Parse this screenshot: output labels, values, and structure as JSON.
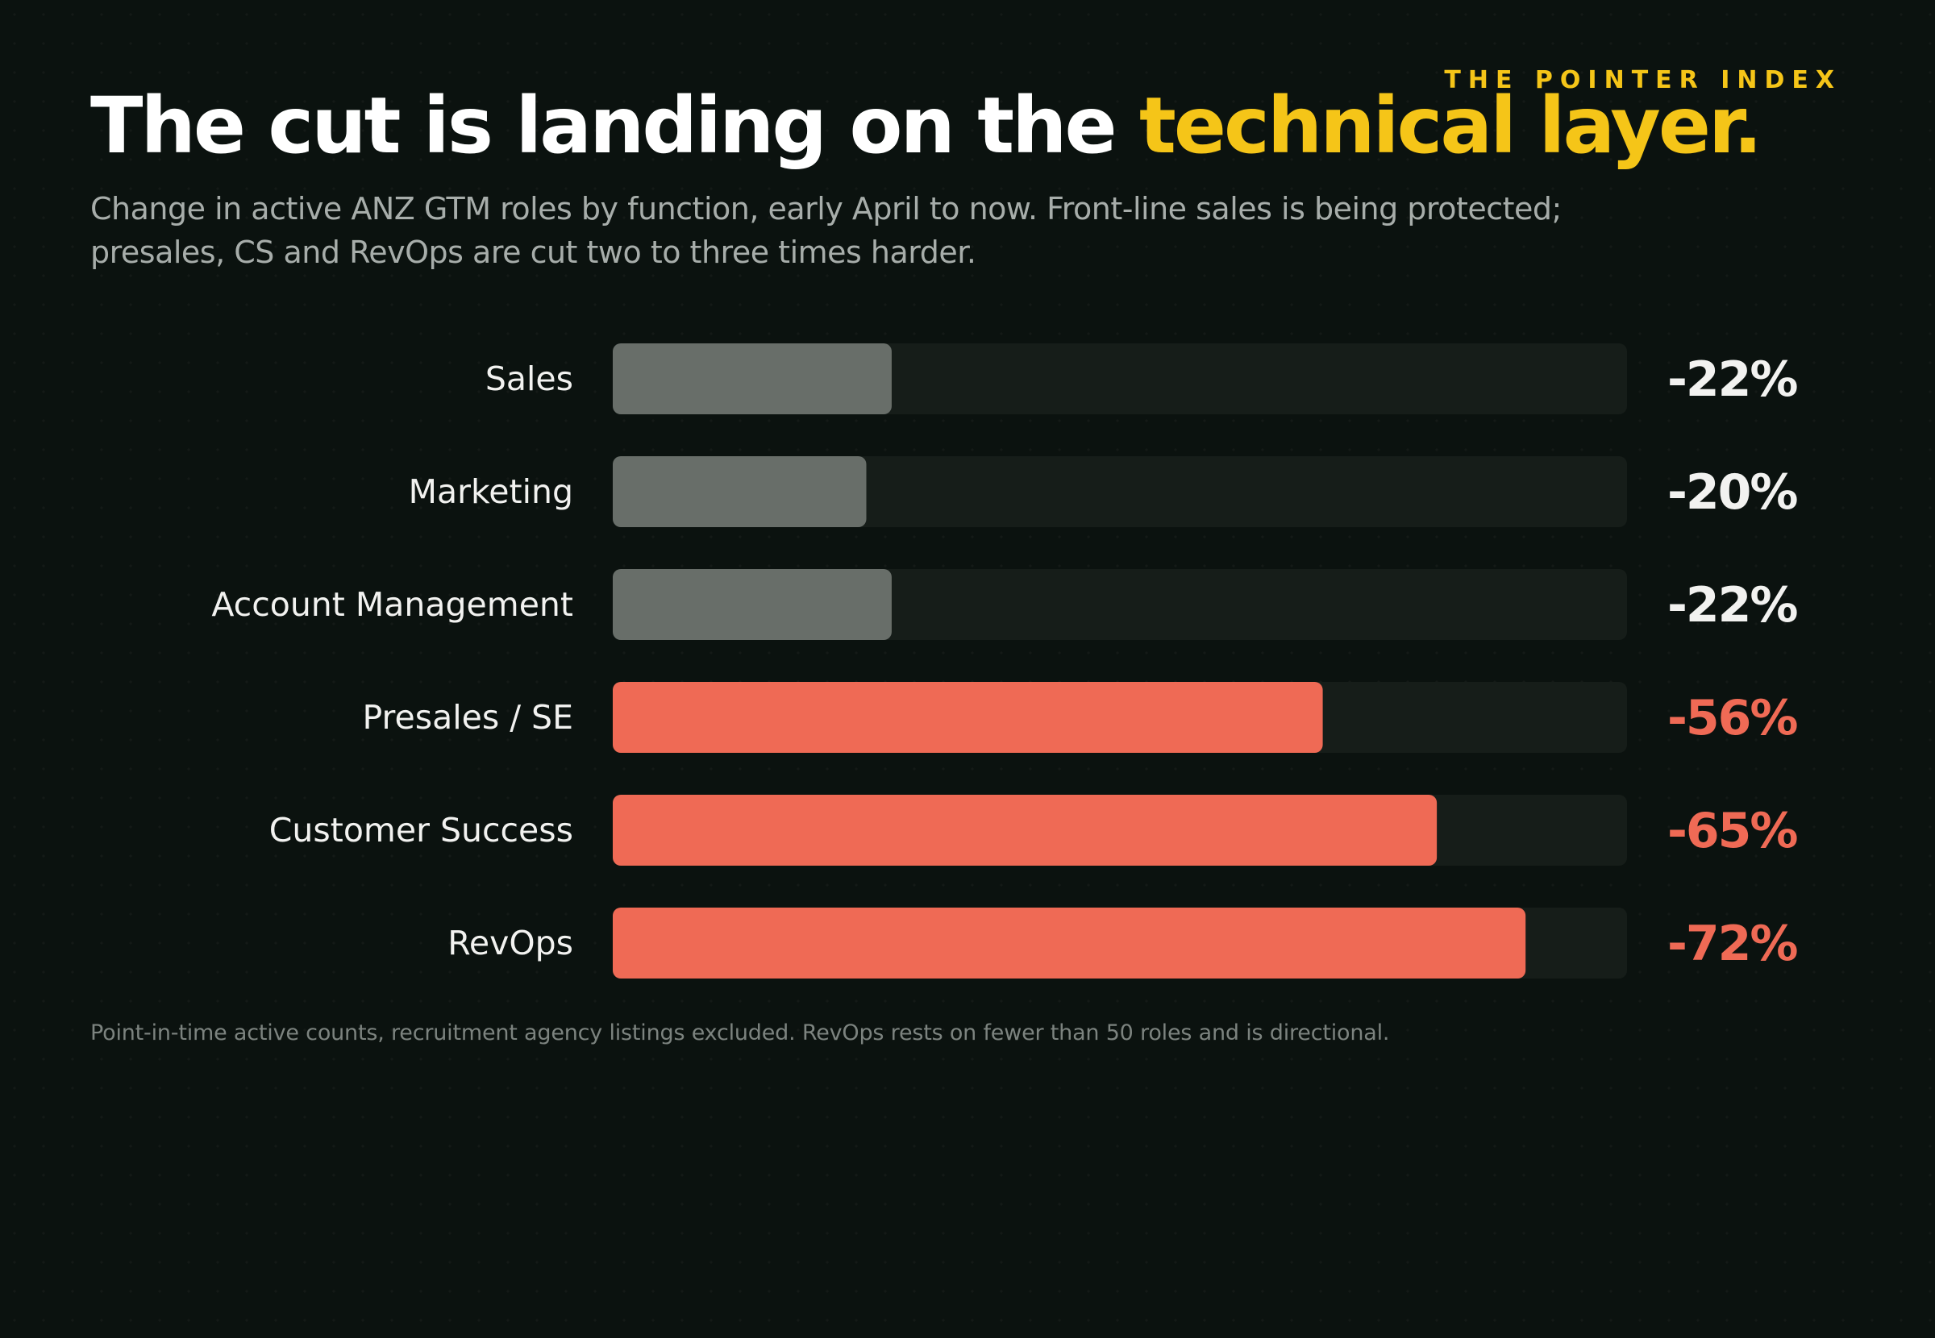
{
  "brand": "THE POINTER INDEX",
  "headline": {
    "lead": "The cut is landing on the ",
    "accent": "technical layer."
  },
  "subtitle": "Change in active ANZ GTM roles by function, early April to now. Front-line sales is being protected; presales, CS and RevOps are cut two to three times harder.",
  "footnote": "Point-in-time active counts, recruitment agency listings excluded. RevOps rests on fewer than 50 roles and is directional.",
  "colors": {
    "background": "#0b120f",
    "track": "#161d19",
    "protected_bar": "#686e69",
    "cut_bar": "#ef6a55",
    "protected_value": "#f2f2f0",
    "cut_value": "#ef6a55",
    "accent": "#f5c518"
  },
  "chart_data": {
    "type": "bar",
    "orientation": "horizontal",
    "categories": [
      "Sales",
      "Marketing",
      "Account Management",
      "Presales / SE",
      "Customer Success",
      "RevOps"
    ],
    "values": [
      -22,
      -20,
      -22,
      -56,
      -65,
      -72
    ],
    "value_labels": [
      "-22%",
      "-20%",
      "-22%",
      "-56%",
      "-65%",
      "-72%"
    ],
    "groups": [
      "protected",
      "protected",
      "protected",
      "cut",
      "cut",
      "cut"
    ],
    "unit": "%",
    "xlim": [
      0,
      80
    ],
    "grid": false,
    "legend": "none"
  }
}
